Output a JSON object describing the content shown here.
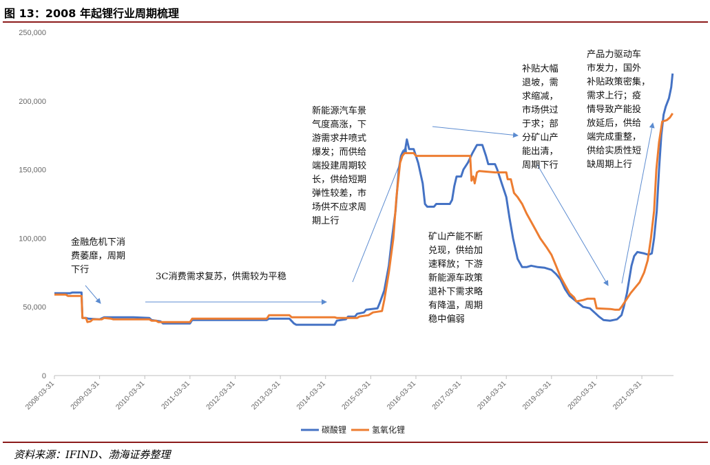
{
  "figure": {
    "title": "图 13：2008 年起锂行业周期梳理",
    "source": "资料来源：IFIND、渤海证券整理"
  },
  "annotations": [
    {
      "id": "a1",
      "lines": [
        "金融危机下消",
        "费萎靡，周期",
        "下行"
      ]
    },
    {
      "id": "a2",
      "lines": [
        "3C消费需求复苏，供需较为平稳"
      ]
    },
    {
      "id": "a3",
      "lines": [
        "新能源汽车景",
        "气度高涨，下",
        "游需求井喷式",
        "爆发；而供给",
        "端投建周期较",
        "长，供给短期",
        "弹性较差，市",
        "场供不应求周",
        "期上行"
      ]
    },
    {
      "id": "a4",
      "lines": [
        "矿山产能不断",
        "兑现，供给加",
        "速释放；下游",
        "新能源车政策",
        "退补下需求略",
        "有降温，周期",
        "稳中偏弱"
      ]
    },
    {
      "id": "a5",
      "lines": [
        "补贴大幅",
        "退坡，需",
        "求缩减，",
        "市场供过",
        "于求；部",
        "分矿山产",
        "能出清，",
        "周期下行"
      ]
    },
    {
      "id": "a6",
      "lines": [
        "产品力驱动车",
        "市发力，国外",
        "补贴政策密集，",
        "需求上行；疫",
        "情导致产能投",
        "放延后，供给",
        "端完成重整，",
        "供给实质性短",
        "缺周期上行"
      ]
    }
  ],
  "chart_data": {
    "type": "line",
    "title": "",
    "xlabel": "",
    "ylabel": "",
    "ylim": [
      0,
      250000
    ],
    "yticks": [
      "0",
      "50,000",
      "100,000",
      "150,000",
      "200,000",
      "250,000"
    ],
    "xticks": [
      "2008-03-31",
      "2009-03-31",
      "2010-03-31",
      "2011-03-31",
      "2012-03-31",
      "2013-03-31",
      "2014-03-31",
      "2015-03-31",
      "2016-03-31",
      "2017-03-31",
      "2018-03-31",
      "2019-03-31",
      "2020-03-31",
      "2021-03-31"
    ],
    "xlim": [
      2008.25,
      2021.95
    ],
    "grid": false,
    "legend_position": "bottom",
    "series": [
      {
        "name": "碳酸锂",
        "color": "#4472c4",
        "points": [
          [
            2008.25,
            60000
          ],
          [
            2008.6,
            60000
          ],
          [
            2008.65,
            60500
          ],
          [
            2008.85,
            60500
          ],
          [
            2008.87,
            42000
          ],
          [
            2008.95,
            42000
          ],
          [
            2009.0,
            41500
          ],
          [
            2009.25,
            41000
          ],
          [
            2009.35,
            42500
          ],
          [
            2010.0,
            42500
          ],
          [
            2010.35,
            42000
          ],
          [
            2010.4,
            40500
          ],
          [
            2010.6,
            39500
          ],
          [
            2010.65,
            38000
          ],
          [
            2011.25,
            38000
          ],
          [
            2011.3,
            40500
          ],
          [
            2012.95,
            40500
          ],
          [
            2013.0,
            41500
          ],
          [
            2013.45,
            41500
          ],
          [
            2013.55,
            38000
          ],
          [
            2013.6,
            37000
          ],
          [
            2014.45,
            37000
          ],
          [
            2014.5,
            40000
          ],
          [
            2014.7,
            41000
          ],
          [
            2014.75,
            43000
          ],
          [
            2014.9,
            43000
          ],
          [
            2014.95,
            45000
          ],
          [
            2015.1,
            46000
          ],
          [
            2015.15,
            48000
          ],
          [
            2015.4,
            49000
          ],
          [
            2015.45,
            53000
          ],
          [
            2015.55,
            62000
          ],
          [
            2015.65,
            80000
          ],
          [
            2015.72,
            100000
          ],
          [
            2015.8,
            120000
          ],
          [
            2015.87,
            150000
          ],
          [
            2015.92,
            160000
          ],
          [
            2015.96,
            163000
          ],
          [
            2016.0,
            162000
          ],
          [
            2016.05,
            172000
          ],
          [
            2016.1,
            165000
          ],
          [
            2016.2,
            165000
          ],
          [
            2016.3,
            155000
          ],
          [
            2016.4,
            140000
          ],
          [
            2016.45,
            125000
          ],
          [
            2016.5,
            123000
          ],
          [
            2016.65,
            123000
          ],
          [
            2016.7,
            125000
          ],
          [
            2017.0,
            125000
          ],
          [
            2017.05,
            128000
          ],
          [
            2017.1,
            138000
          ],
          [
            2017.15,
            145000
          ],
          [
            2017.25,
            145000
          ],
          [
            2017.3,
            150000
          ],
          [
            2017.4,
            155000
          ],
          [
            2017.5,
            162000
          ],
          [
            2017.6,
            168000
          ],
          [
            2017.72,
            168000
          ],
          [
            2017.8,
            160000
          ],
          [
            2017.85,
            154000
          ],
          [
            2018.0,
            154000
          ],
          [
            2018.05,
            150000
          ],
          [
            2018.15,
            140000
          ],
          [
            2018.25,
            130000
          ],
          [
            2018.32,
            115000
          ],
          [
            2018.4,
            100000
          ],
          [
            2018.5,
            85000
          ],
          [
            2018.6,
            79000
          ],
          [
            2018.7,
            79000
          ],
          [
            2018.8,
            80000
          ],
          [
            2018.95,
            79000
          ],
          [
            2019.1,
            78500
          ],
          [
            2019.25,
            77000
          ],
          [
            2019.35,
            74000
          ],
          [
            2019.45,
            70000
          ],
          [
            2019.55,
            63000
          ],
          [
            2019.65,
            58000
          ],
          [
            2019.8,
            54000
          ],
          [
            2019.95,
            50000
          ],
          [
            2020.1,
            49000
          ],
          [
            2020.2,
            46000
          ],
          [
            2020.3,
            43000
          ],
          [
            2020.4,
            40500
          ],
          [
            2020.55,
            40000
          ],
          [
            2020.7,
            41000
          ],
          [
            2020.8,
            44000
          ],
          [
            2020.85,
            50000
          ],
          [
            2020.92,
            60000
          ],
          [
            2020.97,
            70000
          ],
          [
            2021.02,
            80000
          ],
          [
            2021.08,
            87000
          ],
          [
            2021.15,
            90000
          ],
          [
            2021.3,
            89000
          ],
          [
            2021.4,
            88000
          ],
          [
            2021.47,
            89000
          ],
          [
            2021.52,
            100000
          ],
          [
            2021.58,
            120000
          ],
          [
            2021.63,
            150000
          ],
          [
            2021.68,
            175000
          ],
          [
            2021.73,
            190000
          ],
          [
            2021.78,
            196000
          ],
          [
            2021.85,
            202000
          ],
          [
            2021.9,
            210000
          ],
          [
            2021.93,
            220000
          ]
        ]
      },
      {
        "name": "氢氧化锂",
        "color": "#ed7d31",
        "points": [
          [
            2008.25,
            59000
          ],
          [
            2008.5,
            59000
          ],
          [
            2008.55,
            58000
          ],
          [
            2008.85,
            58000
          ],
          [
            2008.87,
            42000
          ],
          [
            2008.95,
            42000
          ],
          [
            2008.98,
            39000
          ],
          [
            2009.05,
            39500
          ],
          [
            2009.1,
            41000
          ],
          [
            2009.3,
            41000
          ],
          [
            2009.35,
            42000
          ],
          [
            2009.5,
            41500
          ],
          [
            2009.55,
            41000
          ],
          [
            2010.35,
            41000
          ],
          [
            2010.4,
            40000
          ],
          [
            2010.5,
            40000
          ],
          [
            2010.55,
            39000
          ],
          [
            2011.25,
            39000
          ],
          [
            2011.3,
            41500
          ],
          [
            2012.95,
            41500
          ],
          [
            2013.0,
            44000
          ],
          [
            2013.45,
            44000
          ],
          [
            2013.5,
            42500
          ],
          [
            2014.45,
            42500
          ],
          [
            2014.5,
            42000
          ],
          [
            2014.95,
            42000
          ],
          [
            2015.0,
            43000
          ],
          [
            2015.2,
            44000
          ],
          [
            2015.3,
            46000
          ],
          [
            2015.5,
            47000
          ],
          [
            2015.55,
            55000
          ],
          [
            2015.65,
            75000
          ],
          [
            2015.75,
            100000
          ],
          [
            2015.82,
            130000
          ],
          [
            2015.9,
            155000
          ],
          [
            2015.95,
            160000
          ],
          [
            2016.0,
            162000
          ],
          [
            2016.2,
            162000
          ],
          [
            2016.25,
            160000
          ],
          [
            2017.45,
            160000
          ],
          [
            2017.48,
            142000
          ],
          [
            2017.52,
            145000
          ],
          [
            2017.55,
            140000
          ],
          [
            2017.6,
            148000
          ],
          [
            2017.65,
            149000
          ],
          [
            2018.0,
            148000
          ],
          [
            2018.25,
            148000
          ],
          [
            2018.28,
            143000
          ],
          [
            2018.35,
            143000
          ],
          [
            2018.42,
            133000
          ],
          [
            2018.5,
            130000
          ],
          [
            2018.6,
            125000
          ],
          [
            2018.7,
            118000
          ],
          [
            2018.8,
            112000
          ],
          [
            2018.9,
            106000
          ],
          [
            2019.0,
            100000
          ],
          [
            2019.15,
            93000
          ],
          [
            2019.25,
            88000
          ],
          [
            2019.35,
            80000
          ],
          [
            2019.45,
            72000
          ],
          [
            2019.55,
            66000
          ],
          [
            2019.65,
            60000
          ],
          [
            2019.75,
            57000
          ],
          [
            2019.8,
            54000
          ],
          [
            2019.95,
            55000
          ],
          [
            2020.05,
            56000
          ],
          [
            2020.2,
            56000
          ],
          [
            2020.25,
            49000
          ],
          [
            2020.55,
            48500
          ],
          [
            2020.65,
            48000
          ],
          [
            2020.75,
            48000
          ],
          [
            2020.8,
            50000
          ],
          [
            2020.9,
            55000
          ],
          [
            2021.0,
            60000
          ],
          [
            2021.1,
            64000
          ],
          [
            2021.2,
            68000
          ],
          [
            2021.3,
            75000
          ],
          [
            2021.38,
            84000
          ],
          [
            2021.45,
            100000
          ],
          [
            2021.52,
            120000
          ],
          [
            2021.57,
            150000
          ],
          [
            2021.63,
            170000
          ],
          [
            2021.7,
            185000
          ],
          [
            2021.8,
            186000
          ],
          [
            2021.87,
            188000
          ],
          [
            2021.93,
            191000
          ]
        ]
      }
    ]
  }
}
